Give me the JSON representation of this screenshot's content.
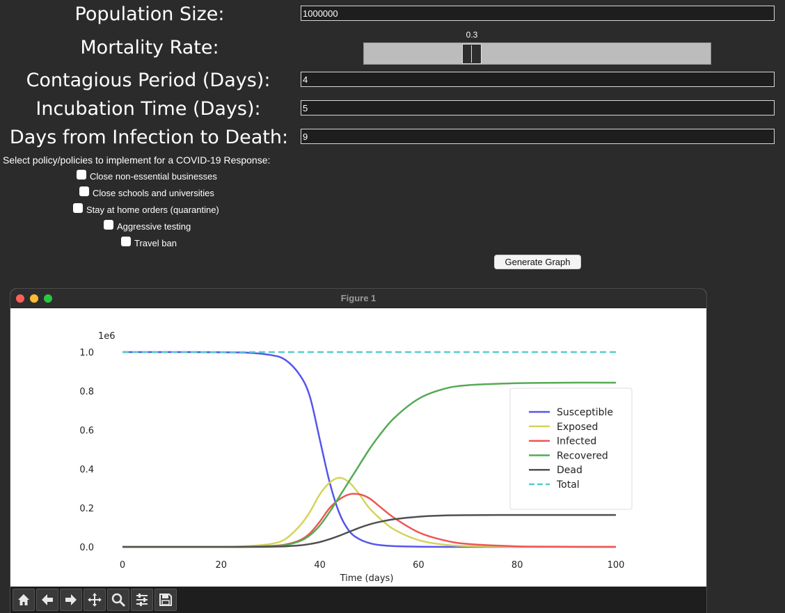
{
  "params": {
    "population_label": "Population Size:",
    "population_value": "1000000",
    "mortality_label": "Mortality Rate:",
    "mortality_value": "0.3",
    "contagious_label": "Contagious Period (Days):",
    "contagious_value": "4",
    "incubation_label": "Incubation Time (Days):",
    "incubation_value": "5",
    "death_label": "Days from Infection to Death:",
    "death_value": "9"
  },
  "mortality_slider": {
    "min": 0,
    "max": 1,
    "value": 0.3
  },
  "policies": {
    "heading": "Select policy/policies to implement for a COVID-19 Response:",
    "items": [
      {
        "label": "Close non-essential businesses",
        "checked": false
      },
      {
        "label": "Close schools and universities",
        "checked": false
      },
      {
        "label": "Stay at home orders (quarantine)",
        "checked": false
      },
      {
        "label": "Aggressive testing",
        "checked": false
      },
      {
        "label": "Travel ban",
        "checked": false
      }
    ]
  },
  "generate_button": "Generate Graph",
  "figure": {
    "title": "Figure 1",
    "toolbar": [
      "home-icon",
      "back-arrow-icon",
      "forward-arrow-icon",
      "pan-icon",
      "zoom-icon",
      "configure-subplots-icon",
      "save-icon"
    ]
  },
  "chart_data": {
    "type": "line",
    "xlabel": "Time (days)",
    "ylabel": "",
    "y_offset_label": "1e6",
    "xlim": [
      0,
      100
    ],
    "ylim": [
      0,
      1
    ],
    "xticks": [
      0,
      20,
      40,
      60,
      80,
      100
    ],
    "xtick_labels": [
      "0",
      "20",
      "40",
      "60",
      "80",
      "100"
    ],
    "yticks": [
      0,
      0.2,
      0.4,
      0.6,
      0.8,
      1.0
    ],
    "ytick_labels": [
      "0.0",
      "0.2",
      "0.4",
      "0.6",
      "0.8",
      "1.0"
    ],
    "grid": false,
    "legend_position": "center-right",
    "x": [
      0,
      10,
      20,
      25,
      30,
      33,
      36,
      38,
      40,
      42,
      44,
      46,
      48,
      50,
      52,
      55,
      60,
      65,
      70,
      80,
      90,
      100
    ],
    "series": [
      {
        "name": "Susceptible",
        "color": "#5555ee",
        "dash": false,
        "values": [
          1.0,
          1.0,
          0.999,
          0.997,
          0.985,
          0.96,
          0.88,
          0.77,
          0.55,
          0.33,
          0.17,
          0.08,
          0.04,
          0.02,
          0.01,
          0.004,
          0.001,
          0.0,
          0.0,
          0.0,
          0.0,
          0.0
        ]
      },
      {
        "name": "Exposed",
        "color": "#d4d45a",
        "dash": false,
        "values": [
          0.0,
          0.0,
          0.0,
          0.004,
          0.015,
          0.04,
          0.11,
          0.18,
          0.27,
          0.33,
          0.355,
          0.33,
          0.27,
          0.2,
          0.15,
          0.09,
          0.035,
          0.012,
          0.004,
          0.001,
          0.0,
          0.0
        ]
      },
      {
        "name": "Infected",
        "color": "#ee5555",
        "dash": false,
        "values": [
          0.0,
          0.0,
          0.0,
          0.001,
          0.005,
          0.012,
          0.035,
          0.07,
          0.13,
          0.2,
          0.245,
          0.27,
          0.27,
          0.25,
          0.21,
          0.15,
          0.075,
          0.035,
          0.015,
          0.003,
          0.001,
          0.0
        ]
      },
      {
        "name": "Recovered",
        "color": "#55aa55",
        "dash": false,
        "values": [
          0.0,
          0.0,
          0.0,
          0.0,
          0.004,
          0.01,
          0.03,
          0.06,
          0.11,
          0.18,
          0.26,
          0.34,
          0.42,
          0.5,
          0.57,
          0.66,
          0.76,
          0.81,
          0.83,
          0.84,
          0.843,
          0.843
        ]
      },
      {
        "name": "Dead",
        "color": "#505050",
        "dash": false,
        "values": [
          0.0,
          0.0,
          0.0,
          0.0,
          0.001,
          0.003,
          0.008,
          0.015,
          0.025,
          0.04,
          0.058,
          0.078,
          0.098,
          0.115,
          0.128,
          0.142,
          0.155,
          0.161,
          0.163,
          0.164,
          0.164,
          0.164
        ]
      },
      {
        "name": "Total",
        "color": "#55cccc",
        "dash": true,
        "values": [
          1.0,
          1.0,
          1.0,
          1.0,
          1.0,
          1.0,
          1.0,
          1.0,
          1.0,
          1.0,
          1.0,
          1.0,
          1.0,
          1.0,
          1.0,
          1.0,
          1.0,
          1.0,
          1.0,
          1.0,
          1.0,
          1.0
        ]
      }
    ]
  }
}
